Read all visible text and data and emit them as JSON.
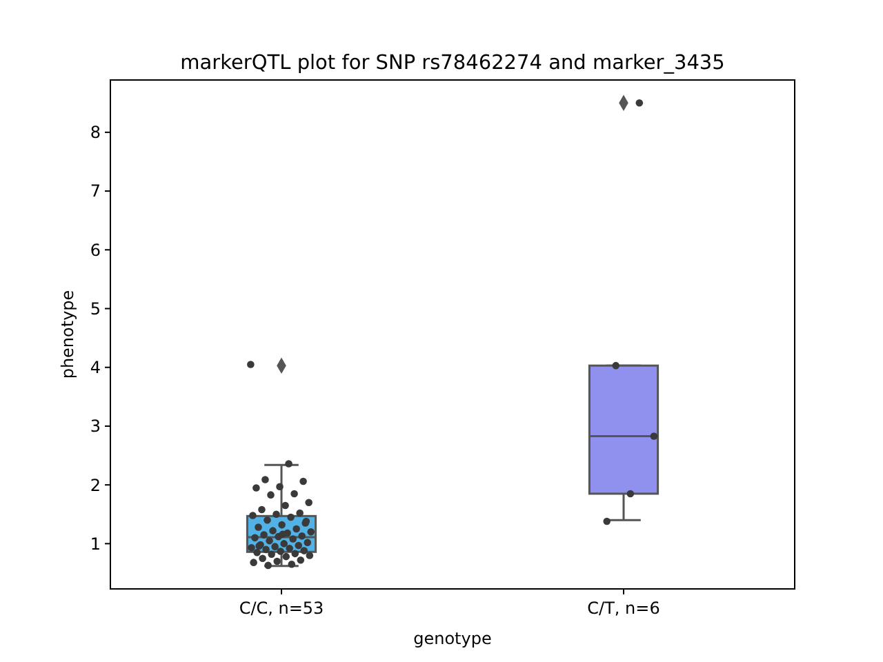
{
  "chart_data": {
    "type": "box",
    "title": "markerQTL plot for SNP rs78462274 and marker_3435",
    "xlabel": "genotype",
    "ylabel": "phenotype",
    "categories": [
      "C/C, n=53",
      "C/T, n=6"
    ],
    "boxes": [
      {
        "low": 0.62,
        "q1": 0.86,
        "median": 1.11,
        "q3": 1.47,
        "high": 2.34,
        "outliers": [
          4.03
        ]
      },
      {
        "low": 1.4,
        "q1": 1.85,
        "median": 2.83,
        "q3": 4.03,
        "high": 4.03,
        "outliers": [
          8.5
        ]
      }
    ],
    "colors": [
      "#52b2e6",
      "#9090ef"
    ],
    "series": [
      {
        "type": "scatter",
        "color": "#3a3a3a",
        "marker": "circle",
        "x": [
          "C/C, n=53",
          "C/C, n=53",
          "C/C, n=53",
          "C/C, n=53",
          "C/C, n=53",
          "C/C, n=53",
          "C/C, n=53",
          "C/C, n=53",
          "C/C, n=53",
          "C/C, n=53",
          "C/C, n=53",
          "C/C, n=53",
          "C/C, n=53",
          "C/C, n=53",
          "C/C, n=53",
          "C/C, n=53",
          "C/C, n=53",
          "C/C, n=53",
          "C/C, n=53",
          "C/C, n=53",
          "C/C, n=53",
          "C/C, n=53",
          "C/C, n=53",
          "C/C, n=53",
          "C/C, n=53",
          "C/C, n=53",
          "C/C, n=53",
          "C/C, n=53",
          "C/C, n=53",
          "C/C, n=53",
          "C/C, n=53",
          "C/C, n=53",
          "C/C, n=53",
          "C/C, n=53",
          "C/C, n=53",
          "C/C, n=53",
          "C/C, n=53",
          "C/C, n=53",
          "C/C, n=53",
          "C/C, n=53",
          "C/C, n=53",
          "C/C, n=53",
          "C/C, n=53",
          "C/C, n=53",
          "C/C, n=53",
          "C/C, n=53",
          "C/C, n=53",
          "C/C, n=53",
          "C/C, n=53",
          "C/C, n=53",
          "C/C, n=53",
          "C/C, n=53",
          "C/C, n=53",
          "C/T, n=6",
          "C/T, n=6",
          "C/T, n=6",
          "C/T, n=6",
          "C/T, n=6"
        ],
        "values": [
          4.05,
          2.36,
          2.09,
          2.06,
          1.97,
          1.95,
          1.85,
          1.83,
          1.7,
          1.65,
          1.58,
          1.52,
          1.5,
          1.48,
          1.45,
          1.4,
          1.35,
          1.32,
          1.28,
          1.25,
          1.22,
          1.2,
          1.18,
          1.15,
          1.13,
          1.12,
          1.1,
          1.08,
          1.05,
          1.02,
          1.0,
          0.98,
          0.97,
          0.95,
          0.93,
          0.92,
          0.9,
          0.88,
          0.87,
          0.85,
          0.83,
          0.82,
          0.8,
          0.78,
          0.75,
          0.72,
          0.7,
          0.68,
          0.65,
          0.63,
          1.38,
          1.16,
          0.96,
          8.5,
          4.03,
          2.83,
          1.85,
          1.38
        ]
      }
    ],
    "ylim": [
      0.23,
      8.89
    ],
    "yticks": [
      1,
      2,
      3,
      4,
      5,
      6,
      7,
      8
    ]
  }
}
